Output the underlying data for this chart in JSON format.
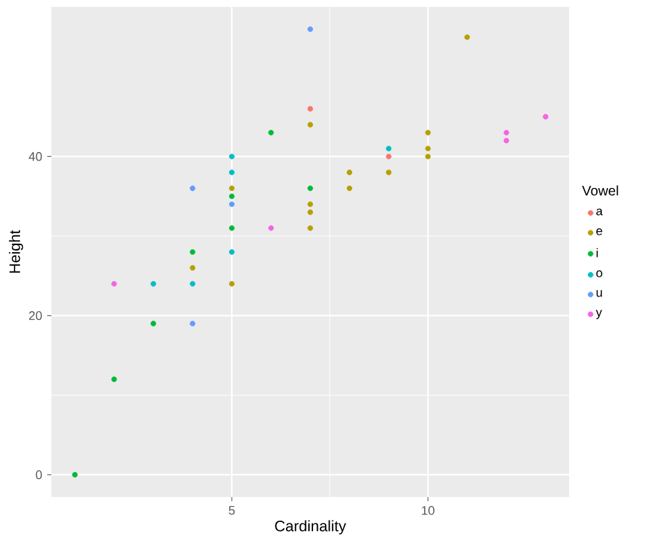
{
  "chart_data": {
    "type": "scatter",
    "xlabel": "Cardinality",
    "ylabel": "Height",
    "legend_title": "Vowel",
    "xlim": [
      0.4,
      13.6
    ],
    "ylim": [
      -2.8,
      58.8
    ],
    "xticks": [
      5,
      10
    ],
    "yticks": [
      0,
      20,
      40
    ],
    "grid": true,
    "legend": "right",
    "marker": "circle",
    "series": [
      {
        "name": "a",
        "color": "#F8766D",
        "x": [
          7,
          9
        ],
        "values": [
          46,
          40
        ]
      },
      {
        "name": "e",
        "color": "#B79F00",
        "x": [
          4,
          5,
          5,
          7,
          7,
          7,
          7,
          8,
          8,
          9,
          10,
          10,
          10,
          11
        ],
        "values": [
          26,
          24,
          36,
          44,
          34,
          33,
          31,
          38,
          36,
          38,
          43,
          41,
          40,
          55
        ]
      },
      {
        "name": "i",
        "color": "#00BA38",
        "x": [
          1,
          2,
          3,
          4,
          5,
          5,
          6,
          7
        ],
        "values": [
          0,
          12,
          19,
          28,
          35,
          31,
          43,
          36
        ]
      },
      {
        "name": "o",
        "color": "#00BFC4",
        "x": [
          3,
          4,
          5,
          5,
          5,
          9
        ],
        "values": [
          24,
          24,
          40,
          38,
          28,
          41
        ]
      },
      {
        "name": "u",
        "color": "#619CFF",
        "x": [
          4,
          4,
          5,
          7
        ],
        "values": [
          36,
          19,
          34,
          56
        ]
      },
      {
        "name": "y",
        "color": "#F564E3",
        "x": [
          2,
          6,
          12,
          12,
          13
        ],
        "values": [
          24,
          31,
          43,
          42,
          45
        ]
      }
    ]
  }
}
